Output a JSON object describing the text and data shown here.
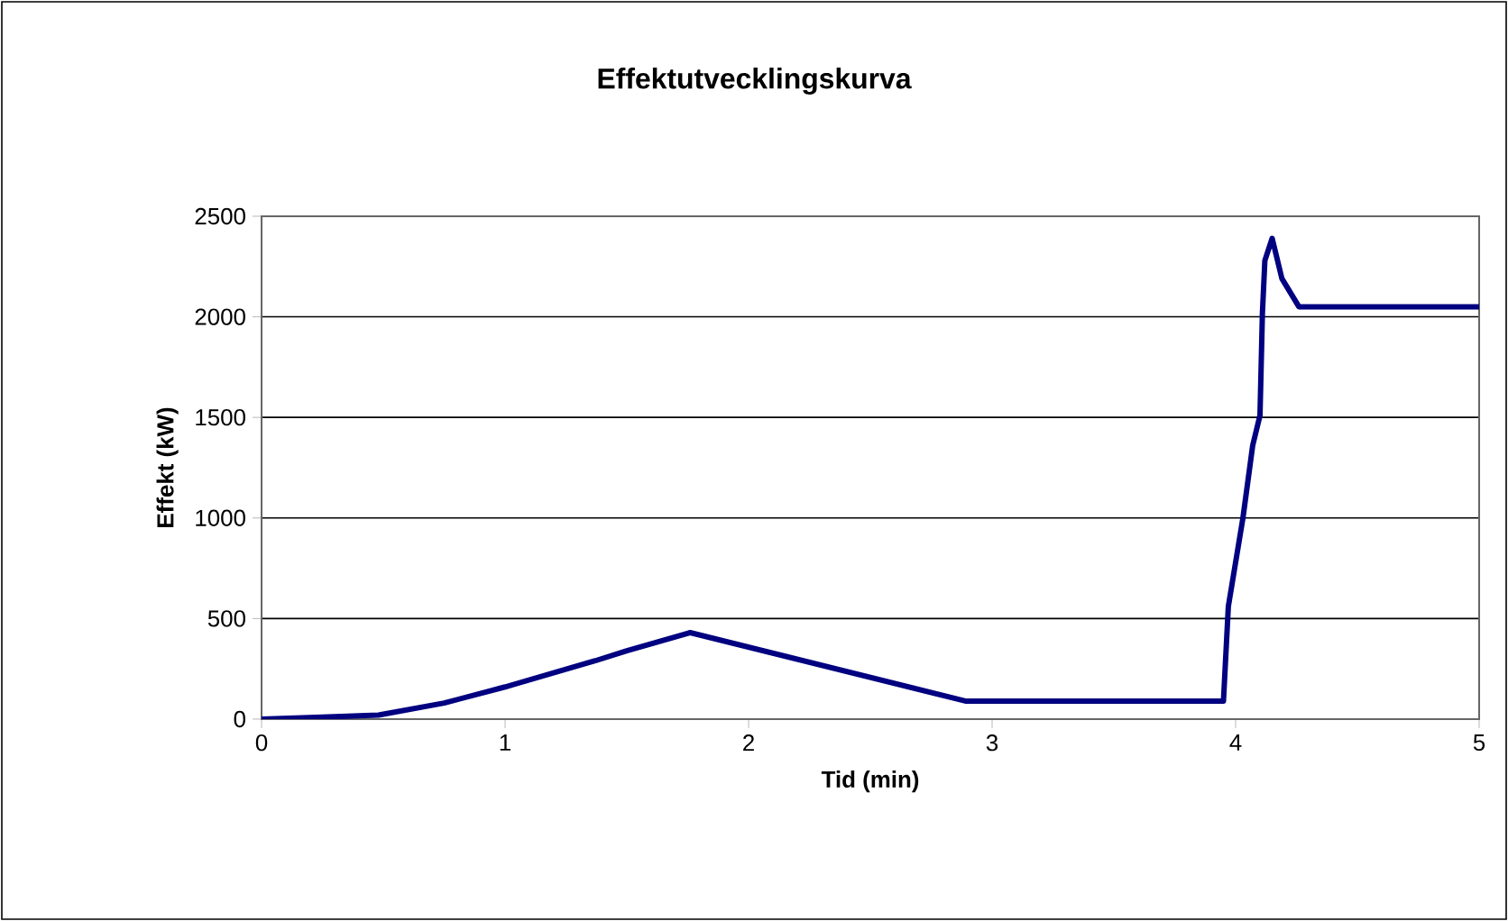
{
  "chart_data": {
    "type": "line",
    "title": "Effektutvecklingskurva",
    "xlabel": "Tid (min)",
    "ylabel": "Effekt (kW)",
    "series": [
      {
        "color": "#000080",
        "x": [
          0,
          0.25,
          0.48,
          0.75,
          1.0,
          1.37,
          1.5,
          1.76,
          2.89,
          3.95,
          3.97,
          4.03,
          4.07,
          4.1,
          4.11,
          4.12,
          4.15,
          4.19,
          4.26,
          5
        ],
        "values": [
          0,
          10,
          20,
          80,
          160,
          290,
          340,
          430,
          90,
          90,
          560,
          1000,
          1360,
          1510,
          2020,
          2280,
          2390,
          2190,
          2050,
          2050
        ]
      }
    ],
    "xlim": [
      0,
      5
    ],
    "xticks": [
      0,
      1,
      2,
      3,
      4,
      5
    ],
    "ylim": [
      0,
      2500
    ],
    "yticks": [
      0,
      500,
      1000,
      1500,
      2000,
      2500
    ],
    "grid": "y",
    "marker": "none",
    "line_style": "solid"
  }
}
